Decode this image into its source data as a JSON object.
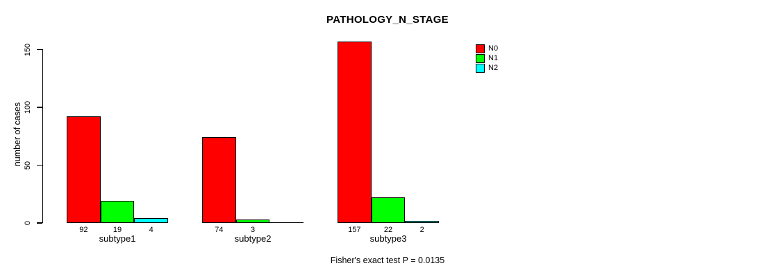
{
  "chart_data": {
    "type": "bar",
    "title": "PATHOLOGY_N_STAGE",
    "xlabel": "",
    "ylabel": "number of cases",
    "ylim": [
      0,
      150
    ],
    "yticks": [
      0,
      50,
      100,
      150
    ],
    "categories": [
      "subtype1",
      "subtype2",
      "subtype3"
    ],
    "series": [
      {
        "name": "N0",
        "color": "#ff0000",
        "values": [
          92,
          74,
          157
        ]
      },
      {
        "name": "N1",
        "color": "#00ff00",
        "values": [
          19,
          3,
          22
        ]
      },
      {
        "name": "N2",
        "color": "#00ffff",
        "values": [
          4,
          0,
          2
        ]
      }
    ],
    "value_labels": [
      [
        "92",
        "19",
        "4"
      ],
      [
        "74",
        "3",
        ""
      ],
      [
        "157",
        "22",
        "2"
      ]
    ],
    "legend": {
      "position": "top-right",
      "entries": [
        "N0",
        "N1",
        "N2"
      ]
    },
    "grid": false,
    "annotation": "Fisher's exact test P = 0.0135",
    "bar_edge_color": "#000000",
    "text_color": "#000000",
    "background": "#ffffff"
  }
}
